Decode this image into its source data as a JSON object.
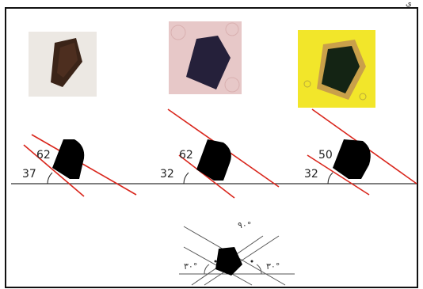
{
  "top_mark": "ي",
  "photos": [
    {
      "name": "photo-1",
      "bg": "#ece8e3",
      "crystal": "#3b2418"
    },
    {
      "name": "photo-2",
      "bg": "#e7c8c8",
      "crystal": "#25203a"
    },
    {
      "name": "photo-3",
      "bg": "#f2e62a",
      "crystal": "#142414"
    }
  ],
  "diagrams": [
    {
      "top_angle": "62",
      "bottom_angle": "37"
    },
    {
      "top_angle": "62",
      "bottom_angle": "32"
    },
    {
      "top_angle": "50",
      "bottom_angle": "32"
    }
  ],
  "ideal": {
    "top_label": "۹۰°",
    "left_label": "۳۰°",
    "right_label": "۳۰°"
  },
  "colors": {
    "line": "#d9261c",
    "crystal": "#000000",
    "baseline": "#333333",
    "ideal_line": "#555555"
  }
}
